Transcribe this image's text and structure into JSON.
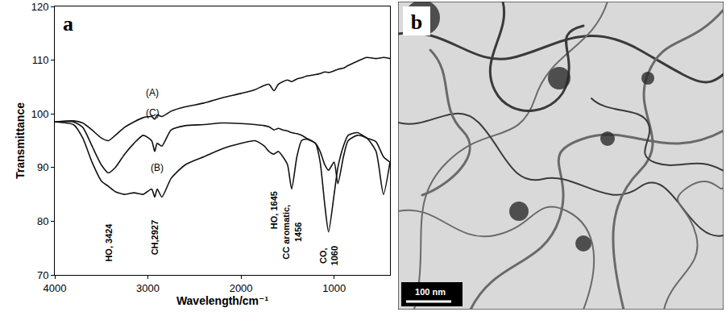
{
  "chart_data": {
    "type": "line",
    "panel_label": "a",
    "x_label": "Wavelength/cm⁻¹",
    "y_label": "Transmittance",
    "x": [
      4000,
      3800,
      3700,
      3600,
      3500,
      3424,
      3350,
      3250,
      3150,
      3050,
      2960,
      2927,
      2900,
      2850,
      2750,
      2600,
      2400,
      2200,
      2000,
      1850,
      1750,
      1700,
      1645,
      1600,
      1550,
      1500,
      1456,
      1400,
      1350,
      1300,
      1200,
      1150,
      1100,
      1060,
      1000,
      960,
      900,
      850,
      750,
      650,
      550,
      470,
      400
    ],
    "series": [
      {
        "name": "(A)",
        "color": "#111111",
        "values": [
          98.5,
          98.7,
          98.3,
          97,
          95.5,
          95,
          96,
          97.5,
          98.5,
          99.3,
          99.5,
          99,
          99.8,
          99.5,
          100.5,
          101.3,
          102,
          103,
          103.8,
          104.5,
          105.3,
          105.5,
          104.3,
          105.5,
          106,
          106.3,
          106,
          106.5,
          106.7,
          107,
          107.3,
          107.5,
          107.8,
          107.7,
          108,
          108.3,
          108.5,
          109,
          109.8,
          110.5,
          110.3,
          110.5,
          110.3
        ]
      },
      {
        "name": "(B)",
        "color": "#111111",
        "values": [
          98.5,
          98,
          95.5,
          91,
          87.5,
          86.5,
          85.5,
          85,
          85.3,
          85,
          86,
          84.5,
          86,
          84.5,
          88,
          90.5,
          92,
          93.5,
          94.5,
          95,
          94,
          93,
          92.5,
          93,
          92,
          90.5,
          86,
          92,
          95,
          95.3,
          94.5,
          93,
          90.5,
          89.5,
          91,
          87,
          92,
          95,
          96,
          95.5,
          93,
          85,
          91
        ]
      },
      {
        "name": "(C)",
        "color": "#111111",
        "values": [
          98.5,
          98.5,
          97.5,
          94,
          90.5,
          89,
          90,
          92.5,
          94.5,
          96,
          95,
          93,
          94.5,
          94,
          97,
          97.8,
          98,
          98.3,
          98.2,
          98,
          97.8,
          97.6,
          97,
          97.3,
          97,
          96.8,
          96.5,
          96.3,
          96,
          95.5,
          94.5,
          91,
          83,
          78,
          85,
          90,
          94,
          96,
          96.5,
          95.5,
          94.8,
          92,
          91
        ]
      }
    ],
    "xlim": [
      4000,
      400
    ],
    "xticks": [
      4000,
      3000,
      2000,
      1000
    ],
    "ylim": [
      70,
      120
    ],
    "yticks": [
      70,
      80,
      90,
      100,
      110,
      120
    ],
    "grid": false,
    "annotations": [
      {
        "text": "(A)",
        "x": 2950,
        "y": 104
      },
      {
        "text": "(C)",
        "x": 2950,
        "y": 100.2
      },
      {
        "text": "(B)",
        "x": 2900,
        "y": 90
      }
    ],
    "band_labels": [
      {
        "text": "HO, 3424",
        "x": 3424,
        "y": 76
      },
      {
        "text": "CH,2927",
        "x": 2927,
        "y": 77
      },
      {
        "text": "HO, 1645",
        "x": 1645,
        "y": 82
      },
      {
        "text": "CC aromatic,\n1456",
        "x": 1456,
        "y": 78
      },
      {
        "text": "CO,\n1060",
        "x": 1060,
        "y": 73.5
      }
    ]
  },
  "image_panel": {
    "label": "b",
    "scale_bar": "100 nm"
  }
}
